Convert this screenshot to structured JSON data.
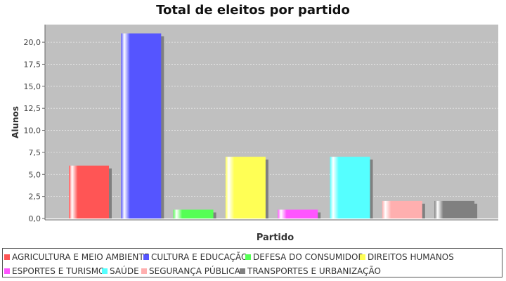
{
  "chart_data": {
    "type": "bar",
    "title": "Total de eleitos por partido",
    "xlabel": "Partido",
    "ylabel": "Alunos",
    "ylim": [
      0,
      22
    ],
    "yticks": [
      "0,0",
      "2,5",
      "5,0",
      "7,5",
      "10,0",
      "12,5",
      "15,0",
      "17,5",
      "20,0"
    ],
    "ytick_values": [
      0,
      2.5,
      5,
      7.5,
      10,
      12.5,
      15,
      17.5,
      20
    ],
    "grid": true,
    "legend_position": "bottom",
    "categories": [
      "AGRICULTURA E MEIO AMBIENTE",
      "CULTURA E EDUCAÇÃO",
      "DEFESA DO CONSUMIDOR",
      "DIREITOS HUMANOS",
      "ESPORTES E TURISMO",
      "SAÚDE",
      "SEGURANÇA PÚBLICA",
      "TRANSPORTES E URBANIZAÇÃO"
    ],
    "values": [
      6,
      21,
      1,
      7,
      1,
      7,
      2,
      2
    ],
    "colors": [
      "#ff5555",
      "#5555ff",
      "#55ff55",
      "#ffff55",
      "#ff55ff",
      "#55ffff",
      "#ffafaf",
      "#808080"
    ],
    "plot_background": "#c0c0c0"
  }
}
